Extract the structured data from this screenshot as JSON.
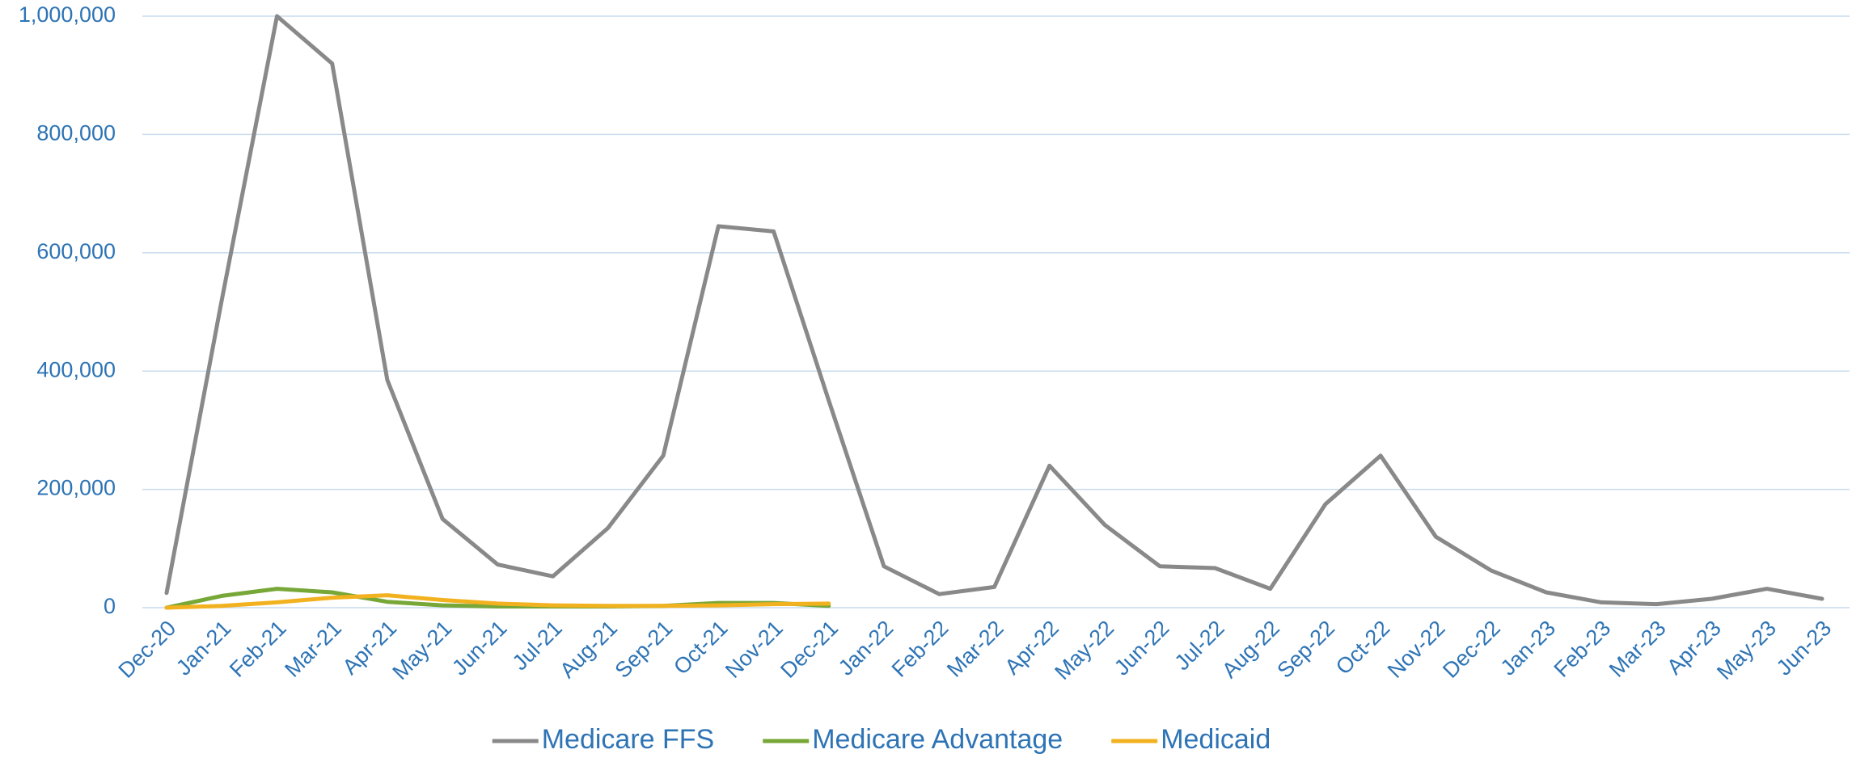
{
  "chart_data": {
    "type": "line",
    "categories": [
      "Dec-20",
      "Jan-21",
      "Feb-21",
      "Mar-21",
      "Apr-21",
      "May-21",
      "Jun-21",
      "Jul-21",
      "Aug-21",
      "Sep-21",
      "Oct-21",
      "Nov-21",
      "Dec-21",
      "Jan-22",
      "Feb-22",
      "Mar-22",
      "Apr-22",
      "May-22",
      "Jun-22",
      "Jul-22",
      "Aug-22",
      "Sep-22",
      "Oct-22",
      "Nov-22",
      "Dec-22",
      "Jan-23",
      "Feb-23",
      "Mar-23",
      "Apr-23",
      "May-23",
      "Jun-23"
    ],
    "series": [
      {
        "name": "Medicare FFS",
        "color": "#898989",
        "values": [
          25000,
          520000,
          1000000,
          920000,
          385000,
          150000,
          73000,
          53000,
          135000,
          257000,
          645000,
          636000,
          350000,
          70000,
          23000,
          35000,
          240000,
          140000,
          70000,
          67000,
          32000,
          175000,
          257000,
          120000,
          63000,
          26000,
          9000,
          6000,
          15000,
          32000,
          15000
        ]
      },
      {
        "name": "Medicare Advantage",
        "color": "#77a737",
        "values": [
          0,
          20000,
          32000,
          26000,
          10000,
          4000,
          2000,
          2000,
          2000,
          3000,
          8000,
          8000,
          3000,
          null,
          null,
          null,
          null,
          null,
          null,
          null,
          null,
          null,
          null,
          null,
          null,
          null,
          null,
          null,
          null,
          null,
          null
        ]
      },
      {
        "name": "Medicaid",
        "color": "#f2b21f",
        "values": [
          0,
          3000,
          9000,
          17000,
          21000,
          13000,
          7000,
          4000,
          3000,
          3000,
          4000,
          6000,
          7000,
          null,
          null,
          null,
          null,
          null,
          null,
          null,
          null,
          null,
          null,
          null,
          null,
          null,
          null,
          null,
          null,
          null,
          null
        ]
      }
    ],
    "ylim": [
      0,
      1000000
    ],
    "yticks": [
      0,
      {
        "value": 200000,
        "label": "200,000"
      },
      {
        "value": 400000,
        "label": "400,000"
      },
      {
        "value": 600000,
        "label": "600,000"
      },
      {
        "value": 800000,
        "label": "800,000"
      },
      {
        "value": 1000000,
        "label": "1,000,000"
      }
    ],
    "grid": true,
    "legend": "bottom"
  }
}
